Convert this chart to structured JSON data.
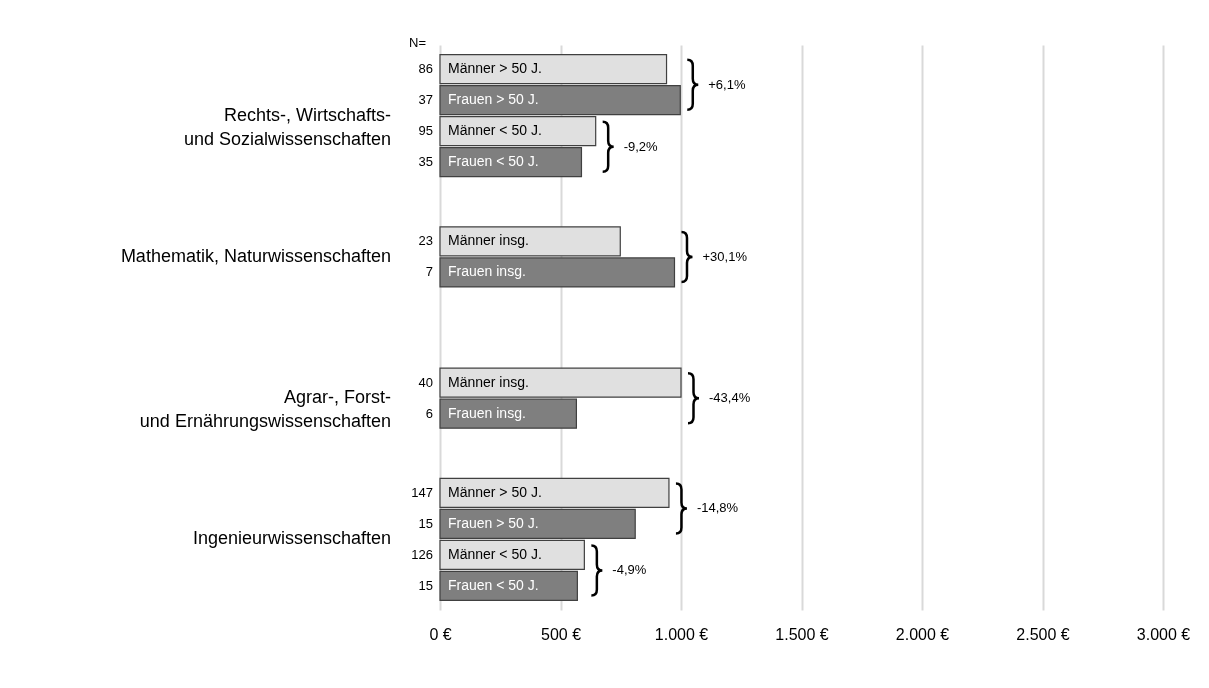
{
  "chart_data": {
    "type": "bar",
    "orientation": "horizontal",
    "categories": [
      "Rechts-, Wirtschafts- und Sozialwissenschaften",
      "Mathematik, Naturwissenschaften",
      "Agrar-, Forst- und Ernährungswissenschaften",
      "Ingenieurwissenschaften"
    ],
    "series": [
      {
        "name": "Männer > 50 J.",
        "color": "#e0e0e0",
        "values": [
          940,
          null,
          null,
          950
        ]
      },
      {
        "name": "Frauen > 50 J.",
        "color": "#7f7f7f",
        "values": [
          997,
          null,
          null,
          810
        ]
      },
      {
        "name": "Männer < 50 J.",
        "color": "#e0e0e0",
        "values": [
          646,
          null,
          null,
          599
        ]
      },
      {
        "name": "Frauen < 50 J.",
        "color": "#7f7f7f",
        "values": [
          587,
          null,
          null,
          570
        ]
      },
      {
        "name": "Männer insg.",
        "color": "#e0e0e0",
        "values": [
          null,
          748,
          1000,
          null
        ]
      },
      {
        "name": "Frauen insg.",
        "color": "#7f7f7f",
        "values": [
          null,
          973,
          566,
          null
        ]
      }
    ],
    "xlim": [
      0,
      3000
    ],
    "xticks": [
      {
        "value": 0,
        "label": "0 €"
      },
      {
        "value": 500,
        "label": "500 €"
      },
      {
        "value": 1000,
        "label": "1.000 €"
      },
      {
        "value": 1500,
        "label": "1.500 €"
      },
      {
        "value": 2000,
        "label": "2.000 €"
      },
      {
        "value": 2500,
        "label": "2.500 €"
      },
      {
        "value": 3000,
        "label": "3.000 €"
      }
    ],
    "grid": "x",
    "annotations": [
      "N=",
      "86",
      "37",
      "95",
      "35",
      "23",
      "7",
      "40",
      "6",
      "147",
      "15",
      "126",
      "15",
      "+6,1%",
      "-9,2%",
      "+30,1%",
      "-43,4%",
      "-14,8%",
      "-4,9%"
    ]
  }
}
